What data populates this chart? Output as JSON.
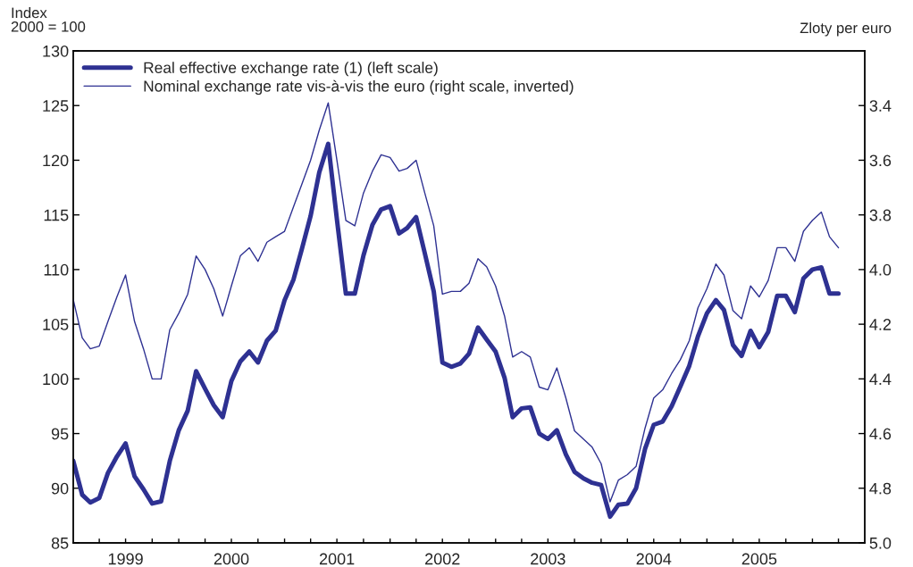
{
  "chart_data": {
    "type": "line",
    "ylabel": "Index\n2000 = 100",
    "y2label": "Zloty per euro",
    "x": [
      "1999-01",
      "1999-02",
      "1999-03",
      "1999-04",
      "1999-05",
      "1999-06",
      "1999-07",
      "1999-08",
      "1999-09",
      "1999-10",
      "1999-11",
      "1999-12",
      "2000-01",
      "2000-02",
      "2000-03",
      "2000-04",
      "2000-05",
      "2000-06",
      "2000-07",
      "2000-08",
      "2000-09",
      "2000-10",
      "2000-11",
      "2000-12",
      "2001-01",
      "2001-02",
      "2001-03",
      "2001-04",
      "2001-05",
      "2001-06",
      "2001-07",
      "2001-08",
      "2001-09",
      "2001-10",
      "2001-11",
      "2001-12",
      "2002-01",
      "2002-02",
      "2002-03",
      "2002-04",
      "2002-05",
      "2002-06",
      "2002-07",
      "2002-08",
      "2002-09",
      "2002-10",
      "2002-11",
      "2002-12",
      "2003-01",
      "2003-02",
      "2003-03",
      "2003-04",
      "2003-05",
      "2003-06",
      "2003-07",
      "2003-08",
      "2003-09",
      "2003-10",
      "2003-11",
      "2003-12",
      "2004-01",
      "2004-02",
      "2004-03",
      "2004-04",
      "2004-05",
      "2004-06",
      "2004-07",
      "2004-08",
      "2004-09",
      "2004-10",
      "2004-11",
      "2004-12",
      "2005-01",
      "2005-02",
      "2005-03",
      "2005-04",
      "2005-05",
      "2005-06",
      "2005-07",
      "2005-08",
      "2005-09",
      "2005-10",
      "2005-11",
      "2005-12",
      "2006-01",
      "2006-02",
      "2006-03",
      "2006-04"
    ],
    "series": [
      {
        "name": "Real effective exchange rate (1) (left scale)",
        "color": "#2e3192",
        "values": [
          92.5,
          89.4,
          88.7,
          89.1,
          91.4,
          92.9,
          94.1,
          91.1,
          89.9,
          88.6,
          88.8,
          92.5,
          95.3,
          97.1,
          100.7,
          99.1,
          97.6,
          96.5,
          99.8,
          101.6,
          102.5,
          101.5,
          103.5,
          104.4,
          107.2,
          109.1,
          111.8,
          114.9,
          118.9,
          121.5,
          114.6,
          107.8,
          107.8,
          111.3,
          114.1,
          115.5,
          115.8,
          113.3,
          113.8,
          114.8,
          111.5,
          108.0,
          101.5,
          101.1,
          101.4,
          102.3,
          104.7,
          103.6,
          102.5,
          100.1,
          96.5,
          97.3,
          97.4,
          95.0,
          94.5,
          95.3,
          93.1,
          91.5,
          90.9,
          90.5,
          90.3,
          87.4,
          88.5,
          88.6,
          90.0,
          93.6,
          95.8,
          96.1,
          97.5,
          99.3,
          101.2,
          103.9,
          106.0,
          107.2,
          106.3,
          103.1,
          102.1,
          104.4,
          102.9,
          104.3,
          107.6,
          107.6,
          106.1,
          109.2,
          110.0,
          110.2,
          107.8,
          107.8
        ]
      },
      {
        "name": "Nominal exchange rate vis-à-vis the euro (right scale, inverted)",
        "color": "#2e3192",
        "axis": "y2",
        "values": [
          4.11,
          4.25,
          4.29,
          4.28,
          4.19,
          4.1,
          4.02,
          4.19,
          4.29,
          4.4,
          4.4,
          4.22,
          4.16,
          4.09,
          3.95,
          4.0,
          4.07,
          4.17,
          4.06,
          3.95,
          3.92,
          3.97,
          3.9,
          3.88,
          3.86,
          3.77,
          3.69,
          3.6,
          3.49,
          3.39,
          3.6,
          3.82,
          3.84,
          3.72,
          3.64,
          3.58,
          3.59,
          3.64,
          3.63,
          3.6,
          3.72,
          3.84,
          4.09,
          4.08,
          4.08,
          4.05,
          3.96,
          3.99,
          4.06,
          4.17,
          4.32,
          4.3,
          4.32,
          4.43,
          4.44,
          4.36,
          4.47,
          4.59,
          4.62,
          4.65,
          4.71,
          4.85,
          4.77,
          4.75,
          4.72,
          4.58,
          4.47,
          4.44,
          4.38,
          4.33,
          4.26,
          4.14,
          4.07,
          3.98,
          4.02,
          4.15,
          4.18,
          4.06,
          4.1,
          4.04,
          3.92,
          3.92,
          3.97,
          3.86,
          3.82,
          3.79,
          3.88,
          3.92
        ]
      }
    ],
    "xlim": [
      "1999-01-01",
      "2006-07-01"
    ],
    "xticks": [
      {
        "value": "1999-04-01",
        "label": null
      },
      {
        "value": "1999-07-01",
        "label": "1999"
      },
      {
        "value": "1999-10-01",
        "label": null
      },
      {
        "value": "2000-01-01",
        "label": null
      },
      {
        "value": "2000-04-01",
        "label": null
      },
      {
        "value": "2000-07-01",
        "label": "2000"
      },
      {
        "value": "2000-10-01",
        "label": null
      },
      {
        "value": "2001-01-01",
        "label": null
      },
      {
        "value": "2001-04-01",
        "label": null
      },
      {
        "value": "2001-07-01",
        "label": "2001"
      },
      {
        "value": "2001-10-01",
        "label": null
      },
      {
        "value": "2002-01-01",
        "label": null
      },
      {
        "value": "2002-04-01",
        "label": null
      },
      {
        "value": "2002-07-01",
        "label": "2002"
      },
      {
        "value": "2002-10-01",
        "label": null
      },
      {
        "value": "2003-01-01",
        "label": null
      },
      {
        "value": "2003-04-01",
        "label": null
      },
      {
        "value": "2003-07-01",
        "label": "2003"
      },
      {
        "value": "2003-10-01",
        "label": null
      },
      {
        "value": "2004-01-01",
        "label": null
      },
      {
        "value": "2004-04-01",
        "label": null
      },
      {
        "value": "2004-07-01",
        "label": "2004"
      },
      {
        "value": "2004-10-01",
        "label": null
      },
      {
        "value": "2005-01-01",
        "label": null
      },
      {
        "value": "2005-04-01",
        "label": null
      },
      {
        "value": "2005-07-01",
        "label": "2005"
      },
      {
        "value": "2005-10-01",
        "label": null
      },
      {
        "value": "2006-01-01",
        "label": null
      },
      {
        "value": "2006-04-01",
        "label": null
      }
    ],
    "ylim": [
      85,
      130
    ],
    "yticks": [
      85,
      90,
      95,
      100,
      105,
      110,
      115,
      120,
      125,
      130
    ],
    "y2lim": [
      5.0,
      3.2
    ],
    "y2ticks": [
      3.4,
      3.6,
      3.8,
      {
        "value": 4,
        "label": "4.0"
      },
      4.2,
      4.4,
      4.6,
      4.8,
      {
        "value": 5,
        "label": "5.0"
      }
    ],
    "legend": "top left",
    "grid": false,
    "line_style": "solid",
    "marker": "none"
  }
}
